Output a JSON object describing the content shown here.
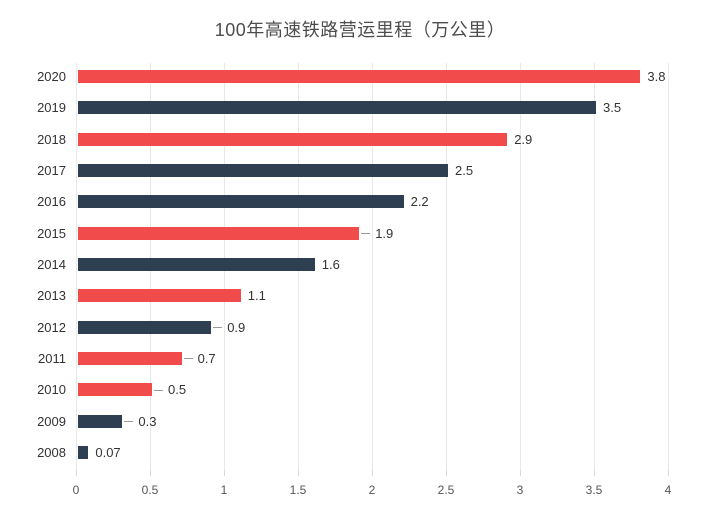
{
  "title": "100年高速铁路营运里程（万公里）",
  "colors": {
    "red": "#f14b4b",
    "navy": "#2d3f51",
    "gridline": "#e8e8e8",
    "tick": "#d9d9d9",
    "title_text": "#4d4d4d",
    "label_text": "#333333",
    "axis_text": "#555555",
    "leader_dash": "#9a9a9a",
    "background": "#ffffff"
  },
  "chart_data": {
    "type": "bar",
    "orientation": "horizontal",
    "title": "100年高速铁路营运里程（万公里）",
    "xlabel": "",
    "ylabel": "",
    "categories": [
      "2020",
      "2019",
      "2018",
      "2017",
      "2016",
      "2015",
      "2014",
      "2013",
      "2012",
      "2011",
      "2010",
      "2009",
      "2008"
    ],
    "values": [
      3.8,
      3.5,
      2.9,
      2.5,
      2.2,
      1.9,
      1.6,
      1.1,
      0.9,
      0.7,
      0.5,
      0.3,
      0.07
    ],
    "value_labels": [
      "3.8",
      "3.5",
      "2.9",
      "2.5",
      "2.2",
      "1.9",
      "1.6",
      "1.1",
      "0.9",
      "0.7",
      "0.5",
      "0.3",
      "0.07"
    ],
    "bar_colors": [
      "red",
      "navy",
      "red",
      "navy",
      "navy",
      "red",
      "navy",
      "red",
      "navy",
      "red",
      "red",
      "navy",
      "navy"
    ],
    "label_leader_dash": [
      false,
      false,
      false,
      false,
      false,
      true,
      false,
      false,
      true,
      true,
      true,
      true,
      false
    ],
    "x_ticks": [
      "0",
      "0.5",
      "1",
      "1.5",
      "2",
      "2.5",
      "3",
      "3.5",
      "4"
    ],
    "x_tick_values": [
      0,
      0.5,
      1,
      1.5,
      2,
      2.5,
      3,
      3.5,
      4
    ],
    "xlim": [
      0,
      4
    ],
    "grid": true,
    "legend": false
  }
}
